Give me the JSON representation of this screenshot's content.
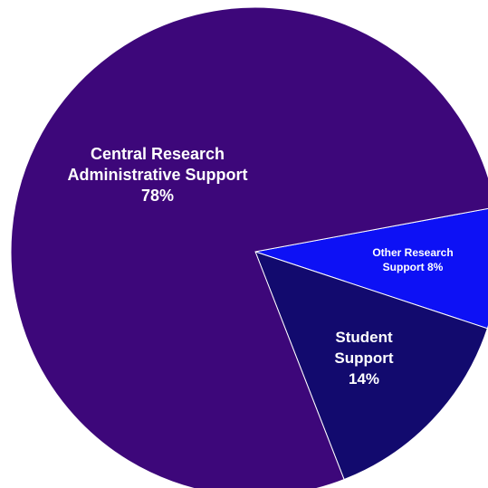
{
  "chart_data": {
    "type": "pie",
    "title": "",
    "slices": [
      {
        "lines": [
          "Other Research",
          "Support   8%"
        ],
        "value": 8,
        "color": "#0d11f5"
      },
      {
        "lines": [
          "Student",
          "Support",
          "14%"
        ],
        "value": 14,
        "color": "#120a6e"
      },
      {
        "lines": [
          "Central Research",
          "Administrative Support",
          "78%"
        ],
        "value": 78,
        "color": "#3d077a"
      }
    ]
  }
}
